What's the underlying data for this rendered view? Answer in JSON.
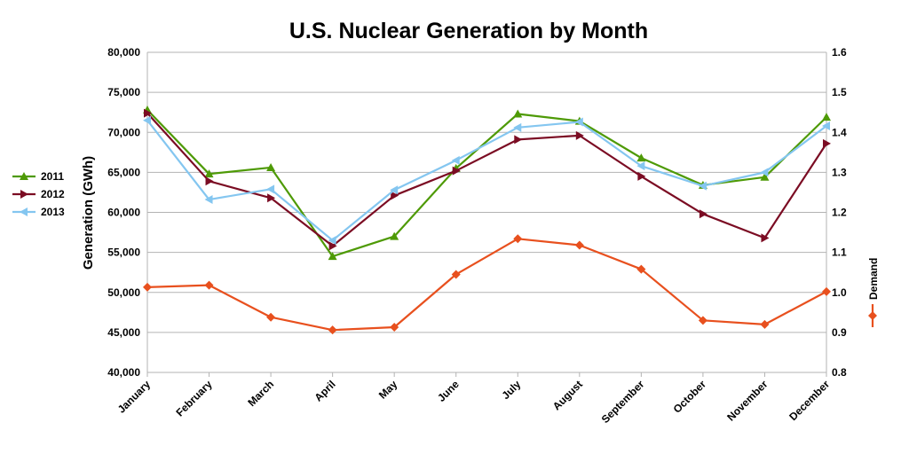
{
  "chart_data": {
    "type": "line",
    "title": "U.S. Nuclear Generation by Month",
    "xlabel": "",
    "ylabel": "Generation (GWh)",
    "y2label": "Demand",
    "categories": [
      "January",
      "February",
      "March",
      "April",
      "May",
      "June",
      "July",
      "August",
      "September",
      "October",
      "November",
      "December"
    ],
    "ylim": [
      40000,
      80000
    ],
    "yticks": [
      "40,000",
      "45,000",
      "50,000",
      "55,000",
      "60,000",
      "65,000",
      "70,000",
      "75,000",
      "80,000"
    ],
    "y2lim": [
      0.8,
      1.6
    ],
    "y2ticks": [
      "0.8",
      "0.9",
      "1.0",
      "1.1",
      "1.2",
      "1.3",
      "1.4",
      "1.5",
      "1.6"
    ],
    "grid": true,
    "legend_placement": "left",
    "series": [
      {
        "name": "2011",
        "axis": "left",
        "color": "#4e9a06",
        "marker": "triangle-up",
        "values": [
          72800,
          64800,
          65600,
          54500,
          57000,
          65500,
          72300,
          71400,
          66800,
          63400,
          64400,
          71900
        ]
      },
      {
        "name": "2012",
        "axis": "left",
        "color": "#7b0c23",
        "marker": "triangle-right",
        "values": [
          72400,
          63900,
          61800,
          55800,
          62100,
          65200,
          69100,
          69600,
          64500,
          59800,
          56800,
          68600
        ]
      },
      {
        "name": "2013",
        "axis": "left",
        "color": "#84c6f0",
        "marker": "triangle-left",
        "values": [
          71500,
          61600,
          62900,
          56500,
          62800,
          66500,
          70600,
          71300,
          65800,
          63300,
          65000,
          70800
        ]
      },
      {
        "name": "Demand",
        "axis": "right",
        "color": "#e8501e",
        "marker": "diamond",
        "values": [
          1.013,
          1.018,
          0.938,
          0.906,
          0.913,
          1.045,
          1.134,
          1.118,
          1.058,
          0.93,
          0.92,
          1.002
        ]
      }
    ]
  }
}
